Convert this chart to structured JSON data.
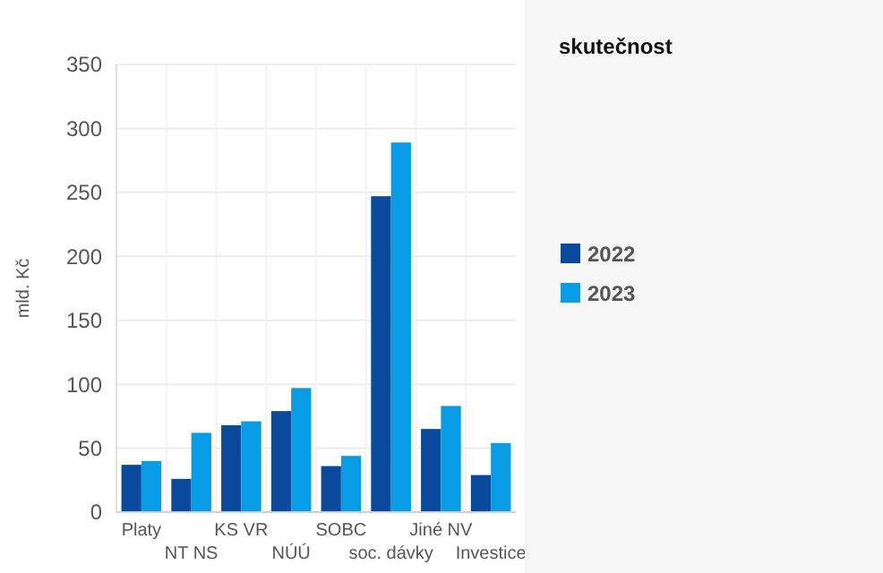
{
  "chart_data": {
    "type": "bar",
    "legend_title": "skutečnost",
    "ylabel": "mld. Kč",
    "categories": [
      "Platy",
      "NT NS",
      "KS VR",
      "NÚÚ",
      "SOBC",
      "soc. dávky",
      "Jiné NV",
      "Investice"
    ],
    "series": [
      {
        "name": "2022",
        "color": "#0a4a9c",
        "values": [
          37,
          26,
          68,
          79,
          36,
          247,
          65,
          29
        ]
      },
      {
        "name": "2023",
        "color": "#089ce6",
        "values": [
          40,
          62,
          71,
          97,
          44,
          289,
          83,
          54
        ]
      }
    ],
    "ylim": [
      0,
      350
    ],
    "yticks": [
      0,
      50,
      100,
      150,
      200,
      250,
      300,
      350
    ],
    "grid": true,
    "legend": "right"
  }
}
